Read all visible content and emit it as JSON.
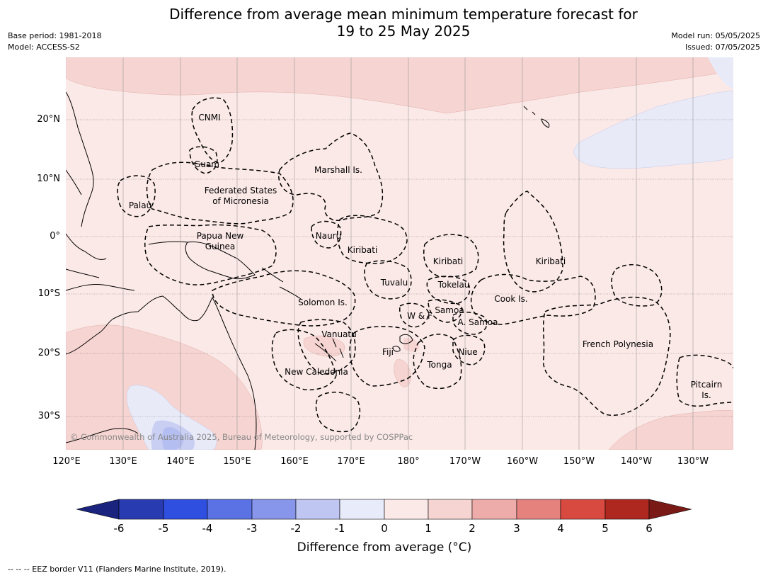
{
  "header": {
    "title_line1": "Difference from average mean minimum temperature forecast for",
    "title_line2": "19 to 25 May 2025",
    "base_period": "Base period: 1981-2018",
    "model": "Model: ACCESS-S2",
    "model_run": "Model run: 05/05/2025",
    "issued": "Issued: 07/05/2025"
  },
  "map": {
    "copyright": "© Commonwealth of Australia 2025, Bureau of Meteorology, supported by COSPPac",
    "lat_labels": [
      "20°N",
      "10°N",
      "0°",
      "10°S",
      "20°S",
      "30°S"
    ],
    "lon_labels": [
      "120°E",
      "130°E",
      "140°E",
      "150°E",
      "160°E",
      "170°E",
      "180°",
      "170°W",
      "160°W",
      "150°W",
      "140°W",
      "130°W"
    ],
    "regions": {
      "cnmi": "CNMI",
      "guam": "Guam",
      "marshall": "Marshall Is.",
      "fsm1": "Federated States",
      "fsm2": "of Micronesia",
      "palau": "Palau",
      "png1": "Papua New",
      "png2": "Guinea",
      "nauru": "Nauru",
      "kiribati_w": "Kiribati",
      "kiribati_c": "Kiribati",
      "kiribati_e": "Kiribati",
      "tuvalu": "Tuvalu",
      "tokelau": "Tokelau",
      "solomon": "Solomon Is.",
      "cook": "Cook Is.",
      "wf": "W & F",
      "samoa": "Samoa",
      "asamoa": "A. Samoa",
      "vanuatu": "Vanuatu",
      "fiji": "Fiji",
      "niue": "Niue",
      "tonga": "Tonga",
      "newcal": "New Caledonia",
      "frpoly": "French Polynesia",
      "pitcairn1": "Pitcairn",
      "pitcairn2": "Is."
    },
    "colors": {
      "anomaly_0_1": "#fbe9e7",
      "anomaly_1_2": "#f5d4d1",
      "anomaly_m1_0": "#e8eaf8",
      "anomaly_m2_m1": "#c1c8f1",
      "anomaly_m3_m2": "#8994e8"
    }
  },
  "colorbar": {
    "title": "Difference from average (°C)",
    "tick_labels": [
      "-6",
      "-5",
      "-4",
      "-3",
      "-2",
      "-1",
      "0",
      "1",
      "2",
      "3",
      "4",
      "5",
      "6"
    ],
    "colors": [
      "#1a237e",
      "#283bb0",
      "#2f4fe0",
      "#5a72e3",
      "#8795ea",
      "#bfc6f2",
      "#e8ebfa",
      "#fbe9e7",
      "#f6d4d1",
      "#edacaa",
      "#e6827e",
      "#d84a40",
      "#ae2820",
      "#7a1a16"
    ]
  },
  "footnote": "--  --  -- EEZ border V11 (Flanders Marine Institute, 2019)."
}
